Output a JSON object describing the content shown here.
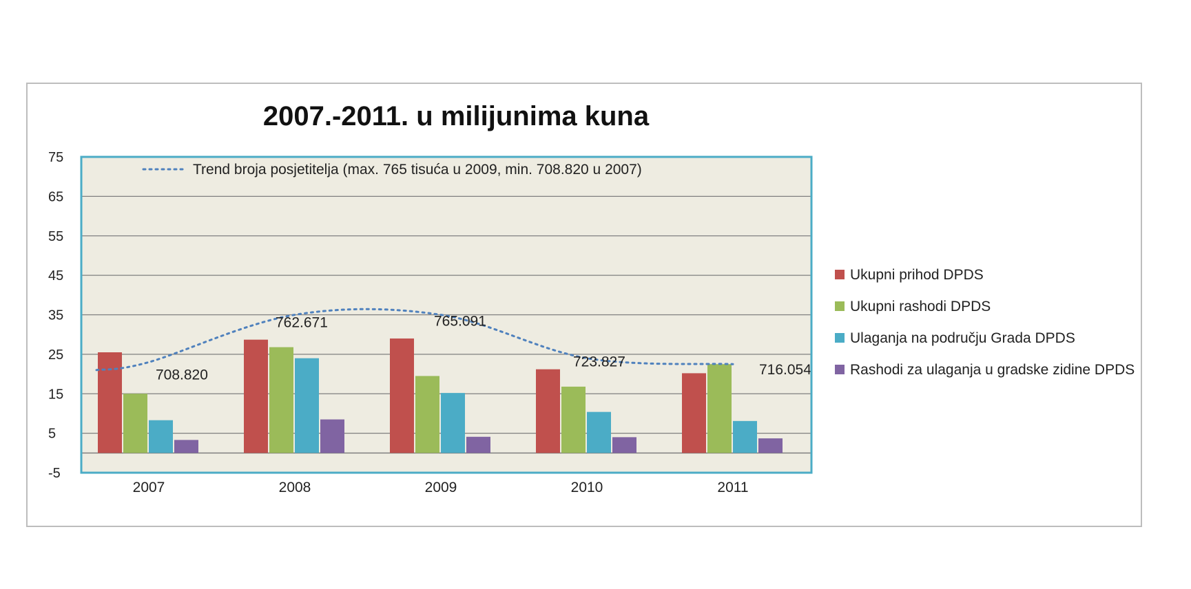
{
  "chart_data": {
    "type": "bar",
    "title": "2007.-2011. u milijunima kuna",
    "categories": [
      "2007",
      "2008",
      "2009",
      "2010",
      "2011"
    ],
    "y_ticks": [
      "75",
      "65",
      "55",
      "45",
      "35",
      "25",
      "15",
      "5",
      "-5"
    ],
    "ylim": [
      -5,
      75
    ],
    "grid": true,
    "legend_position": "right",
    "series": [
      {
        "name": "Ukupni prihod DPDS",
        "color": "#c0504d",
        "values": [
          25.5,
          28.7,
          29.0,
          21.2,
          20.2
        ]
      },
      {
        "name": "Ukupni rashodi DPDS",
        "color": "#9bbb59",
        "values": [
          15.0,
          26.8,
          19.5,
          16.8,
          22.5
        ]
      },
      {
        "name": "Ulaganja na području Grada DPDS",
        "color": "#4bacc6",
        "values": [
          8.3,
          24.0,
          15.2,
          10.4,
          8.1
        ]
      },
      {
        "name": "Rashodi za ulaganja u gradske zidine DPDS",
        "color": "#8064a2",
        "values": [
          3.3,
          8.5,
          4.1,
          4.0,
          3.7
        ]
      }
    ],
    "trend": {
      "label": "Trend broja posjetitelja (max. 765 tisuća u 2009, min. 708.820 u 2007)",
      "color": "#4f81bd",
      "point_labels": [
        "708.820",
        "762.671",
        "765.091",
        "723.827",
        "716.054"
      ],
      "y_values": [
        23,
        35,
        35,
        24,
        22.5
      ]
    },
    "colors": {
      "plot_background": "#eeece1",
      "plot_border": "#4bacc6",
      "grid": "#7f7f7f"
    }
  }
}
